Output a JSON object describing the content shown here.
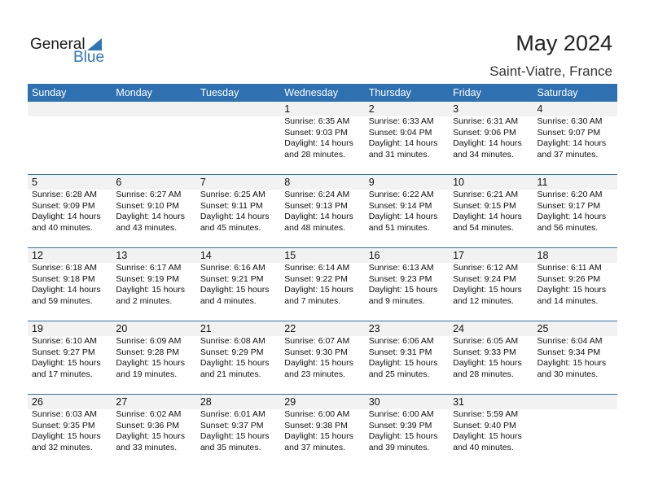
{
  "logo": {
    "general": "General",
    "blue": "Blue"
  },
  "title": "May 2024",
  "location": "Saint-Viatre, France",
  "colors": {
    "header": "#2e70b0",
    "brand": "#2e75b6",
    "band": "#f2f2f2"
  },
  "weekdays": [
    "Sunday",
    "Monday",
    "Tuesday",
    "Wednesday",
    "Thursday",
    "Friday",
    "Saturday"
  ],
  "weeks": [
    [
      null,
      null,
      null,
      {
        "day": "1",
        "sunrise": "Sunrise: 6:35 AM",
        "sunset": "Sunset: 9:03 PM",
        "daylight": "Daylight: 14 hours",
        "minutes": "and 28 minutes."
      },
      {
        "day": "2",
        "sunrise": "Sunrise: 6:33 AM",
        "sunset": "Sunset: 9:04 PM",
        "daylight": "Daylight: 14 hours",
        "minutes": "and 31 minutes."
      },
      {
        "day": "3",
        "sunrise": "Sunrise: 6:31 AM",
        "sunset": "Sunset: 9:06 PM",
        "daylight": "Daylight: 14 hours",
        "minutes": "and 34 minutes."
      },
      {
        "day": "4",
        "sunrise": "Sunrise: 6:30 AM",
        "sunset": "Sunset: 9:07 PM",
        "daylight": "Daylight: 14 hours",
        "minutes": "and 37 minutes."
      }
    ],
    [
      {
        "day": "5",
        "sunrise": "Sunrise: 6:28 AM",
        "sunset": "Sunset: 9:09 PM",
        "daylight": "Daylight: 14 hours",
        "minutes": "and 40 minutes."
      },
      {
        "day": "6",
        "sunrise": "Sunrise: 6:27 AM",
        "sunset": "Sunset: 9:10 PM",
        "daylight": "Daylight: 14 hours",
        "minutes": "and 43 minutes."
      },
      {
        "day": "7",
        "sunrise": "Sunrise: 6:25 AM",
        "sunset": "Sunset: 9:11 PM",
        "daylight": "Daylight: 14 hours",
        "minutes": "and 45 minutes."
      },
      {
        "day": "8",
        "sunrise": "Sunrise: 6:24 AM",
        "sunset": "Sunset: 9:13 PM",
        "daylight": "Daylight: 14 hours",
        "minutes": "and 48 minutes."
      },
      {
        "day": "9",
        "sunrise": "Sunrise: 6:22 AM",
        "sunset": "Sunset: 9:14 PM",
        "daylight": "Daylight: 14 hours",
        "minutes": "and 51 minutes."
      },
      {
        "day": "10",
        "sunrise": "Sunrise: 6:21 AM",
        "sunset": "Sunset: 9:15 PM",
        "daylight": "Daylight: 14 hours",
        "minutes": "and 54 minutes."
      },
      {
        "day": "11",
        "sunrise": "Sunrise: 6:20 AM",
        "sunset": "Sunset: 9:17 PM",
        "daylight": "Daylight: 14 hours",
        "minutes": "and 56 minutes."
      }
    ],
    [
      {
        "day": "12",
        "sunrise": "Sunrise: 6:18 AM",
        "sunset": "Sunset: 9:18 PM",
        "daylight": "Daylight: 14 hours",
        "minutes": "and 59 minutes."
      },
      {
        "day": "13",
        "sunrise": "Sunrise: 6:17 AM",
        "sunset": "Sunset: 9:19 PM",
        "daylight": "Daylight: 15 hours",
        "minutes": "and 2 minutes."
      },
      {
        "day": "14",
        "sunrise": "Sunrise: 6:16 AM",
        "sunset": "Sunset: 9:21 PM",
        "daylight": "Daylight: 15 hours",
        "minutes": "and 4 minutes."
      },
      {
        "day": "15",
        "sunrise": "Sunrise: 6:14 AM",
        "sunset": "Sunset: 9:22 PM",
        "daylight": "Daylight: 15 hours",
        "minutes": "and 7 minutes."
      },
      {
        "day": "16",
        "sunrise": "Sunrise: 6:13 AM",
        "sunset": "Sunset: 9:23 PM",
        "daylight": "Daylight: 15 hours",
        "minutes": "and 9 minutes."
      },
      {
        "day": "17",
        "sunrise": "Sunrise: 6:12 AM",
        "sunset": "Sunset: 9:24 PM",
        "daylight": "Daylight: 15 hours",
        "minutes": "and 12 minutes."
      },
      {
        "day": "18",
        "sunrise": "Sunrise: 6:11 AM",
        "sunset": "Sunset: 9:26 PM",
        "daylight": "Daylight: 15 hours",
        "minutes": "and 14 minutes."
      }
    ],
    [
      {
        "day": "19",
        "sunrise": "Sunrise: 6:10 AM",
        "sunset": "Sunset: 9:27 PM",
        "daylight": "Daylight: 15 hours",
        "minutes": "and 17 minutes."
      },
      {
        "day": "20",
        "sunrise": "Sunrise: 6:09 AM",
        "sunset": "Sunset: 9:28 PM",
        "daylight": "Daylight: 15 hours",
        "minutes": "and 19 minutes."
      },
      {
        "day": "21",
        "sunrise": "Sunrise: 6:08 AM",
        "sunset": "Sunset: 9:29 PM",
        "daylight": "Daylight: 15 hours",
        "minutes": "and 21 minutes."
      },
      {
        "day": "22",
        "sunrise": "Sunrise: 6:07 AM",
        "sunset": "Sunset: 9:30 PM",
        "daylight": "Daylight: 15 hours",
        "minutes": "and 23 minutes."
      },
      {
        "day": "23",
        "sunrise": "Sunrise: 6:06 AM",
        "sunset": "Sunset: 9:31 PM",
        "daylight": "Daylight: 15 hours",
        "minutes": "and 25 minutes."
      },
      {
        "day": "24",
        "sunrise": "Sunrise: 6:05 AM",
        "sunset": "Sunset: 9:33 PM",
        "daylight": "Daylight: 15 hours",
        "minutes": "and 28 minutes."
      },
      {
        "day": "25",
        "sunrise": "Sunrise: 6:04 AM",
        "sunset": "Sunset: 9:34 PM",
        "daylight": "Daylight: 15 hours",
        "minutes": "and 30 minutes."
      }
    ],
    [
      {
        "day": "26",
        "sunrise": "Sunrise: 6:03 AM",
        "sunset": "Sunset: 9:35 PM",
        "daylight": "Daylight: 15 hours",
        "minutes": "and 32 minutes."
      },
      {
        "day": "27",
        "sunrise": "Sunrise: 6:02 AM",
        "sunset": "Sunset: 9:36 PM",
        "daylight": "Daylight: 15 hours",
        "minutes": "and 33 minutes."
      },
      {
        "day": "28",
        "sunrise": "Sunrise: 6:01 AM",
        "sunset": "Sunset: 9:37 PM",
        "daylight": "Daylight: 15 hours",
        "minutes": "and 35 minutes."
      },
      {
        "day": "29",
        "sunrise": "Sunrise: 6:00 AM",
        "sunset": "Sunset: 9:38 PM",
        "daylight": "Daylight: 15 hours",
        "minutes": "and 37 minutes."
      },
      {
        "day": "30",
        "sunrise": "Sunrise: 6:00 AM",
        "sunset": "Sunset: 9:39 PM",
        "daylight": "Daylight: 15 hours",
        "minutes": "and 39 minutes."
      },
      {
        "day": "31",
        "sunrise": "Sunrise: 5:59 AM",
        "sunset": "Sunset: 9:40 PM",
        "daylight": "Daylight: 15 hours",
        "minutes": "and 40 minutes."
      },
      null
    ]
  ]
}
